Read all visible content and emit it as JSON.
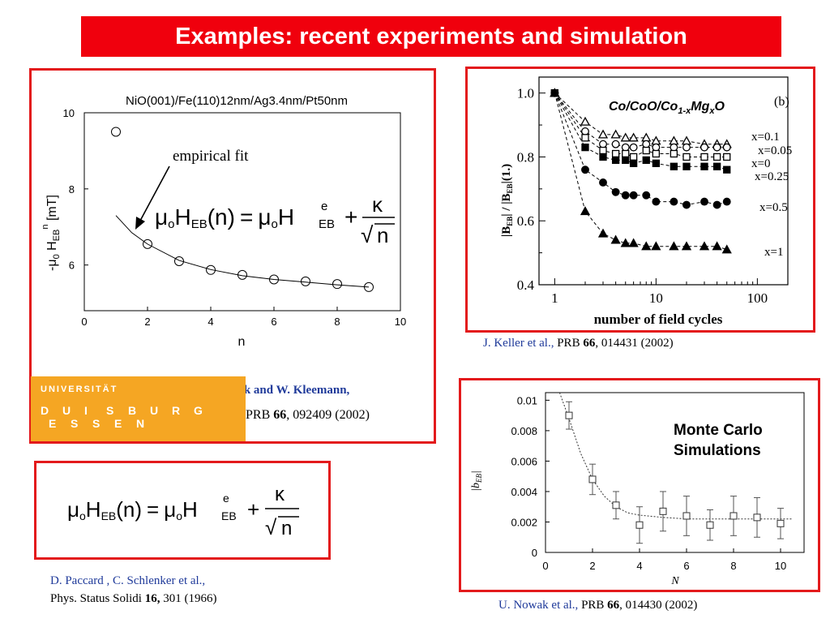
{
  "slide": {
    "title": "Examples: recent experiments and simulation"
  },
  "left_panel": {
    "plot_title": "NiO(001)/Fe(110)12nm/Ag3.4nm/Pt50nm",
    "annotation": "empirical fit",
    "ylabel_parts": {
      "minus_mu": "-μ",
      "zero": "0",
      "H": " H",
      "EB": "EB",
      "n": "n",
      "unit": " [mT]"
    },
    "logo": {
      "line1": "UNIVERSITÄT",
      "line2_letters": [
        "D",
        "U",
        "I",
        "S",
        "B",
        "U",
        "R",
        "G"
      ],
      "line3_letters": [
        "E",
        "S",
        "S",
        "E",
        "N"
      ]
    },
    "authors": "A. Hochstrat, Ch. Binek and W. Kleemann,",
    "journal": "PRB ",
    "volume": "66",
    "pages": ", 092409 (2002)"
  },
  "formula": {
    "mu": "μ",
    "o": "o",
    "H": "H",
    "EB": "EB",
    "n_arg": "(n)",
    "equals": "=",
    "e": "e",
    "plus": "+",
    "kappa": "κ",
    "sqrt": "√",
    "n": "n"
  },
  "top_right_panel": {
    "legend_title_parts": {
      "a": "Co/CoO/Co",
      "sub": "1-x",
      "b": "Mg",
      "sub2": "x",
      "c": "O"
    },
    "panel_label": "(b)",
    "ylabel_parts": {
      "a": "|B",
      "s1": "EB",
      "b": "| / |B",
      "s2": "EB",
      "c": "|(1.)"
    },
    "xlabel": "number of field cycles",
    "ref_authors": "J. Keller et al.,",
    "ref_journal": " PRB ",
    "ref_volume": "66",
    "ref_pages": ", 014431 (2002)"
  },
  "bottom_right_panel": {
    "label_line1": "Monte Carlo",
    "label_line2": "Simulations",
    "ylabel": "|b",
    "ylabel_sub": "EB",
    "ylabel_end": "|",
    "xlabel": "N",
    "ref_authors": "U. Nowak et al.,",
    "ref_journal": " PRB ",
    "ref_volume": "66",
    "ref_pages": ", 014430 (2002)"
  },
  "bottom_left_ref": {
    "authors": "D. Paccard , C. Schlenker et al.,",
    "journal": "Phys. Status Solidi ",
    "volume": "16,",
    "pages": " 301 (1966)"
  },
  "colors": {
    "title_bg": "#f0000d",
    "panel_border": "#e31a1c",
    "ref_blue": "#1f3a9a",
    "logo_bg": "#f5a623"
  },
  "chart_data": [
    {
      "type": "scatter",
      "title": "NiO(001)/Fe(110)12nm/Ag3.4nm/Pt50nm",
      "xlabel": "n",
      "ylabel": "-μ0 HEB n [mT]",
      "xlim": [
        0,
        10
      ],
      "ylim": [
        4.8,
        10
      ],
      "xticks": [
        0,
        2,
        4,
        6,
        8,
        10
      ],
      "yticks": [
        6,
        8,
        10
      ],
      "series": [
        {
          "x": [
            1,
            2,
            3,
            4,
            5,
            6,
            7,
            8,
            9
          ],
          "y": [
            9.5,
            6.55,
            6.1,
            5.87,
            5.74,
            5.62,
            5.57,
            5.5,
            5.42
          ]
        }
      ],
      "fit": {
        "x": [
          1.0,
          1.5,
          2.0,
          3.0,
          4.0,
          5.0,
          6.0,
          7.0,
          8.0,
          9.0
        ],
        "y": [
          7.3,
          6.85,
          6.55,
          6.12,
          5.88,
          5.72,
          5.62,
          5.55,
          5.48,
          5.42
        ]
      },
      "grid": false
    },
    {
      "type": "line",
      "xlabel": "number of field cycles",
      "ylabel": "|BEB| / |BEB|(1.)",
      "xscale": "log",
      "xlim": [
        0.7,
        200
      ],
      "ylim": [
        0.4,
        1.05
      ],
      "xticks": [
        1,
        10,
        100
      ],
      "yticks": [
        0.4,
        0.6,
        0.8,
        1.0
      ],
      "x": [
        1,
        2,
        3,
        4,
        5,
        6,
        8,
        10,
        15,
        20,
        30,
        40,
        50
      ],
      "series": [
        {
          "name": "x=0.1",
          "marker": "open-triangle",
          "values": [
            1.0,
            0.91,
            0.87,
            0.87,
            0.86,
            0.86,
            0.86,
            0.85,
            0.85,
            0.85,
            0.84,
            0.84,
            0.84
          ]
        },
        {
          "name": "x=0.05",
          "marker": "open-circle",
          "values": [
            1.0,
            0.88,
            0.84,
            0.84,
            0.83,
            0.83,
            0.84,
            0.83,
            0.83,
            0.83,
            0.83,
            0.83,
            0.83
          ]
        },
        {
          "name": "x=0",
          "marker": "open-square",
          "values": [
            1.0,
            0.86,
            0.82,
            0.81,
            0.81,
            0.8,
            0.82,
            0.81,
            0.81,
            0.8,
            0.8,
            0.8,
            0.8
          ]
        },
        {
          "name": "x=0.25",
          "marker": "filled-square",
          "values": [
            1.0,
            0.83,
            0.8,
            0.79,
            0.79,
            0.78,
            0.79,
            0.78,
            0.77,
            0.77,
            0.77,
            0.77,
            0.76
          ]
        },
        {
          "name": "x=0.5",
          "marker": "filled-circle",
          "values": [
            1.0,
            0.76,
            0.72,
            0.69,
            0.68,
            0.68,
            0.68,
            0.66,
            0.66,
            0.65,
            0.66,
            0.65,
            0.66
          ]
        },
        {
          "name": "x=1",
          "marker": "filled-triangle",
          "values": [
            1.0,
            0.63,
            0.56,
            0.54,
            0.53,
            0.53,
            0.52,
            0.52,
            0.52,
            0.52,
            0.52,
            0.52,
            0.51
          ]
        }
      ],
      "grid": false
    },
    {
      "type": "scatter",
      "xlabel": "N",
      "ylabel": "|bEB|",
      "xlim": [
        0,
        11
      ],
      "ylim": [
        0,
        0.0105
      ],
      "xticks": [
        0,
        2,
        4,
        6,
        8,
        10
      ],
      "yticks": [
        0,
        0.002,
        0.004,
        0.006,
        0.008,
        0.01
      ],
      "ytick_labels": [
        "0",
        "0.002",
        "0.004",
        "0.006",
        "0.008",
        "0.01"
      ],
      "series": [
        {
          "x": [
            1,
            2,
            3,
            4,
            5,
            6,
            7,
            8,
            9,
            10
          ],
          "y": [
            0.009,
            0.0048,
            0.0031,
            0.0018,
            0.0027,
            0.0024,
            0.0018,
            0.0024,
            0.0023,
            0.0019
          ],
          "yerr": [
            0.0009,
            0.001,
            0.0009,
            0.0012,
            0.0013,
            0.0013,
            0.001,
            0.0013,
            0.0013,
            0.001
          ]
        }
      ],
      "fit": {
        "x": [
          0.6,
          1,
          1.5,
          2,
          2.5,
          3,
          3.5,
          4,
          5,
          6,
          7,
          8,
          9,
          10.5
        ],
        "y": [
          0.0105,
          0.0088,
          0.0065,
          0.0048,
          0.0037,
          0.003,
          0.0026,
          0.00245,
          0.0023,
          0.0022,
          0.0022,
          0.0022,
          0.0022,
          0.0022
        ]
      },
      "grid": false
    }
  ]
}
